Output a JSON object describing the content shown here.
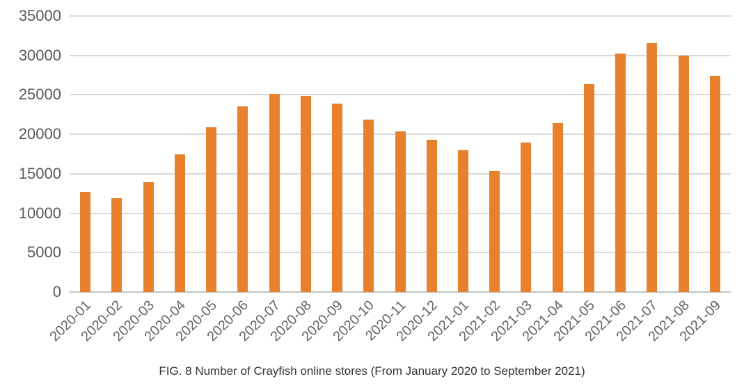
{
  "caption": "FIG. 8 Number of Crayfish online stores (From January 2020 to September 2021)",
  "colors": {
    "bar": "#e8812d",
    "gridline": "#d9d9d9",
    "axis_baseline": "#c4c4c4",
    "tick_label": "#595959",
    "caption_text": "#333333"
  },
  "chart_data": {
    "type": "bar",
    "title": "FIG. 8 Number of Crayfish online stores (From January 2020 to September 2021)",
    "xlabel": "",
    "ylabel": "",
    "categories": [
      "2020-01",
      "2020-02",
      "2020-03",
      "2020-04",
      "2020-05",
      "2020-06",
      "2020-07",
      "2020-08",
      "2020-09",
      "2020-10",
      "2020-11",
      "2020-12",
      "2021-01",
      "2021-02",
      "2021-03",
      "2021-04",
      "2021-05",
      "2021-06",
      "2021-07",
      "2021-08",
      "2021-09"
    ],
    "values": [
      12700,
      11900,
      13900,
      17500,
      20900,
      23500,
      25100,
      24900,
      23900,
      21900,
      20400,
      19300,
      18000,
      15300,
      19000,
      21400,
      26400,
      30200,
      31600,
      30000,
      27400
    ],
    "ylim": [
      0,
      35000
    ],
    "ytick_interval": 5000,
    "yticks": [
      0,
      5000,
      10000,
      15000,
      20000,
      25000,
      30000,
      35000
    ],
    "grid": true,
    "legend": false,
    "bar_color": "#e8812d",
    "x_tick_rotation_deg": -45
  }
}
